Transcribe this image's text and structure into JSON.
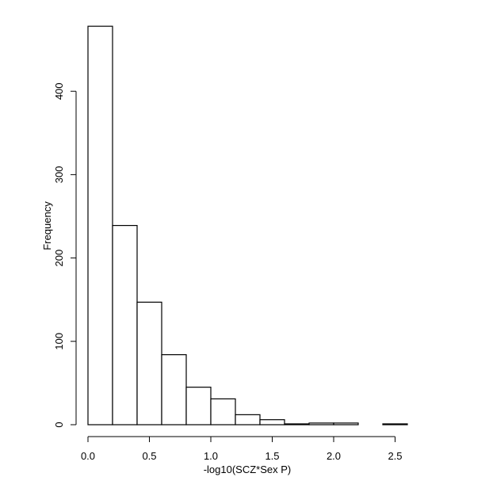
{
  "chart_data": {
    "type": "bar",
    "title": "",
    "xlabel": "-log10(SCZ*Sex P)",
    "ylabel": "Frequency",
    "bins": [
      {
        "x0": 0.0,
        "x1": 0.2,
        "count": 478
      },
      {
        "x0": 0.2,
        "x1": 0.4,
        "count": 239
      },
      {
        "x0": 0.4,
        "x1": 0.6,
        "count": 147
      },
      {
        "x0": 0.6,
        "x1": 0.8,
        "count": 84
      },
      {
        "x0": 0.8,
        "x1": 1.0,
        "count": 45
      },
      {
        "x0": 1.0,
        "x1": 1.2,
        "count": 31
      },
      {
        "x0": 1.2,
        "x1": 1.4,
        "count": 12
      },
      {
        "x0": 1.4,
        "x1": 1.6,
        "count": 6
      },
      {
        "x0": 1.6,
        "x1": 1.8,
        "count": 1
      },
      {
        "x0": 1.8,
        "x1": 2.0,
        "count": 2
      },
      {
        "x0": 2.0,
        "x1": 2.2,
        "count": 2
      },
      {
        "x0": 2.2,
        "x1": 2.4,
        "count": 0
      },
      {
        "x0": 2.4,
        "x1": 2.6,
        "count": 1
      }
    ],
    "xticks": [
      "0.0",
      "0.5",
      "1.0",
      "1.5",
      "2.0",
      "2.5"
    ],
    "yticks": [
      "0",
      "100",
      "200",
      "300",
      "400"
    ],
    "xlim": [
      0,
      2.6
    ],
    "ylim": [
      0,
      478
    ],
    "grid": false,
    "colors": {
      "bar_fill": "#ffffff",
      "bar_stroke": "#000000"
    }
  }
}
